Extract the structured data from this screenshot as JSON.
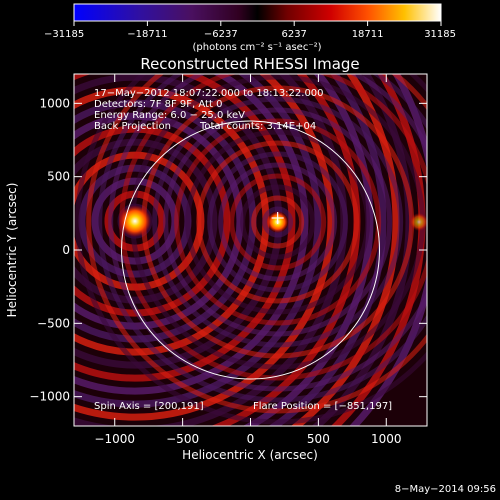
{
  "chart_data": {
    "type": "heatmap",
    "title": "Reconstructed RHESSI Image",
    "xlabel": "Heliocentric X (arcsec)",
    "ylabel": "Heliocentric Y (arcsec)",
    "xlim": [
      -1300,
      1300
    ],
    "ylim": [
      -1200,
      1200
    ],
    "x_ticks": [
      -1000,
      -500,
      0,
      500,
      1000
    ],
    "y_ticks": [
      -1000,
      -500,
      0,
      500,
      1000
    ],
    "x_tick_labels": [
      "−1000",
      "−500",
      "0",
      "500",
      "1000"
    ],
    "y_tick_labels": [
      "−1000",
      "−500",
      "0",
      "500",
      "1000"
    ],
    "colorbar": {
      "ticks": [
        -31185,
        -18711,
        -6237,
        6237,
        18711,
        31185
      ],
      "tick_labels": [
        "−31185",
        "−18711",
        "−6237",
        "6237",
        "18711",
        "31185"
      ],
      "unit_label": "(photons cm⁻² s⁻¹ asec⁻²)",
      "range": [
        -31185,
        31185
      ]
    },
    "annotations": [
      "17−May−2012 18:07:22.000 to 18:13:22.000",
      "Detectors: 7F 8F 9F, Att 0",
      "Energy Range: 6.0 − 25.0 keV",
      "Back Projection",
      "Total counts: 3.14E+04",
      "Spin Axis = [200,191]",
      "Flare Position = [−851,197]"
    ],
    "sources": [
      {
        "x": -851,
        "y": 197,
        "kind": "flare"
      },
      {
        "x": 200,
        "y": 191,
        "kind": "spin-axis"
      }
    ],
    "solar_disk": {
      "center": [
        0,
        0
      ],
      "radius": 950
    },
    "date_stamp": "8−May−2014 09:56"
  }
}
